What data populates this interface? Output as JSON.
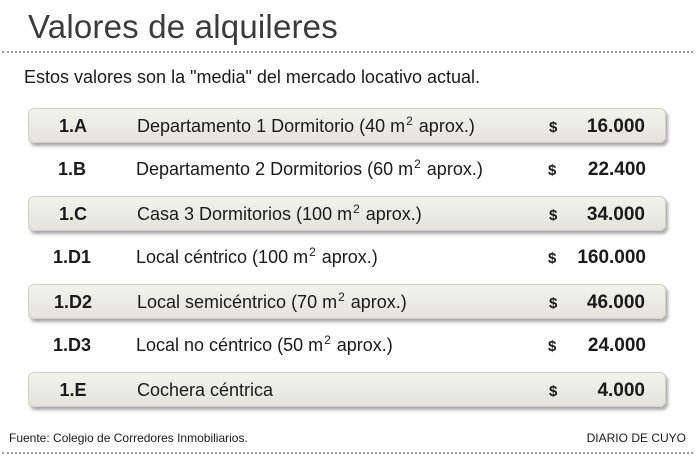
{
  "header": {
    "title": "Valores de alquileres",
    "subtitle": "Estos valores son la \"media\" del mercado locativo actual."
  },
  "rows": [
    {
      "code": "1.A",
      "desc_pre": "Departamento 1 Dormitorio (40 m",
      "sup": "2",
      "desc_post": " aprox.)",
      "currency": "$",
      "price": "16.000",
      "shaded": true
    },
    {
      "code": "1.B",
      "desc_pre": "Departamento 2 Dormitorios (60 m",
      "sup": "2",
      "desc_post": " aprox.)",
      "currency": "$",
      "price": "22.400",
      "shaded": false
    },
    {
      "code": "1.C",
      "desc_pre": "Casa 3 Dormitorios (100 m",
      "sup": "2",
      "desc_post": " aprox.)",
      "currency": "$",
      "price": "34.000",
      "shaded": true
    },
    {
      "code": "1.D1",
      "desc_pre": "Local céntrico (100 m",
      "sup": "2",
      "desc_post": " aprox.)",
      "currency": "$",
      "price": "160.000",
      "shaded": false
    },
    {
      "code": "1.D2",
      "desc_pre": "Local semicéntrico (70 m",
      "sup": "2",
      "desc_post": " aprox.)",
      "currency": "$",
      "price": "46.000",
      "shaded": true
    },
    {
      "code": "1.D3",
      "desc_pre": "Local no céntrico (50 m",
      "sup": "2",
      "desc_post": " aprox.)",
      "currency": "$",
      "price": "24.000",
      "shaded": false
    },
    {
      "code": "1.E",
      "desc_pre": "Cochera céntrica",
      "sup": "",
      "desc_post": "",
      "currency": "$",
      "price": "4.000",
      "shaded": true
    }
  ],
  "footer": {
    "source": "Fuente: Colegio de Corredores Inmobiliarios.",
    "publisher": "DIARIO DE CUYO"
  }
}
